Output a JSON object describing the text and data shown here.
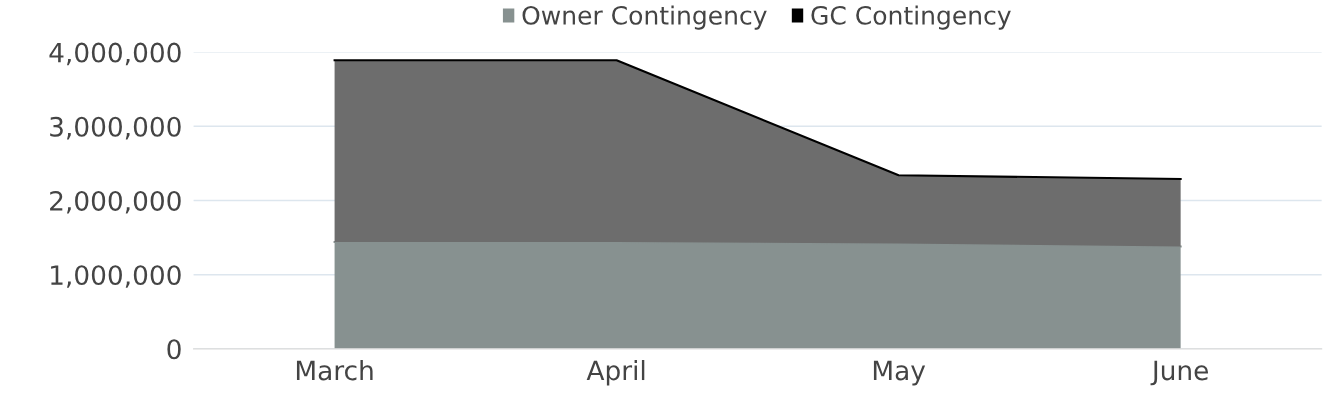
{
  "chart_data": {
    "type": "area",
    "stacked": true,
    "categories": [
      "March",
      "April",
      "May",
      "June"
    ],
    "series": [
      {
        "name": "Owner Contingency",
        "color": "#879190",
        "values": [
          1440000,
          1440000,
          1420000,
          1380000
        ]
      },
      {
        "name": "GC Contingency",
        "color": "#6d6d6d",
        "values": [
          2450000,
          2450000,
          920000,
          910000
        ]
      }
    ],
    "ylim": [
      0,
      4000000
    ],
    "yticks": [
      {
        "value": 0,
        "label": "0"
      },
      {
        "value": 1000000,
        "label": "1,000,000"
      },
      {
        "value": 2000000,
        "label": "2,000,000"
      },
      {
        "value": 3000000,
        "label": "3,000,000"
      },
      {
        "value": 4000000,
        "label": "4,000,000"
      }
    ],
    "grid": "y",
    "legend": "top"
  }
}
